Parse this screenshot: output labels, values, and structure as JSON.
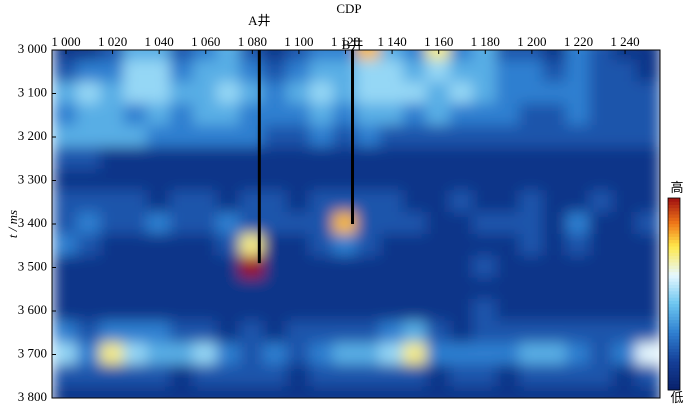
{
  "chart_data": {
    "type": "heatmap",
    "x_label": "CDP",
    "y_label": "t / ms",
    "xlim": [
      994,
      1255
    ],
    "ylim": [
      3000,
      3800
    ],
    "y_reversed": true,
    "xticks": [
      {
        "value": 1000,
        "label": "1 000"
      },
      {
        "value": 1020,
        "label": "1 020"
      },
      {
        "value": 1040,
        "label": "1 040"
      },
      {
        "value": 1060,
        "label": "1 060"
      },
      {
        "value": 1080,
        "label": "1 080"
      },
      {
        "value": 1100,
        "label": "1 100"
      },
      {
        "value": 1120,
        "label": "1 120"
      },
      {
        "value": 1140,
        "label": "1 140"
      },
      {
        "value": 1160,
        "label": "1 160"
      },
      {
        "value": 1180,
        "label": "1 180"
      },
      {
        "value": 1200,
        "label": "1 200"
      },
      {
        "value": 1220,
        "label": "1 220"
      },
      {
        "value": 1240,
        "label": "1 240"
      }
    ],
    "yticks": [
      {
        "value": 3000,
        "label": "3 000"
      },
      {
        "value": 3100,
        "label": "3 100"
      },
      {
        "value": 3200,
        "label": "3 200"
      },
      {
        "value": 3300,
        "label": "3 300"
      },
      {
        "value": 3400,
        "label": "3 400"
      },
      {
        "value": 3500,
        "label": "3 500"
      },
      {
        "value": 3600,
        "label": "3 600"
      },
      {
        "value": 3700,
        "label": "3 700"
      },
      {
        "value": 3800,
        "label": "3 800"
      }
    ],
    "x": [
      1000,
      1010,
      1020,
      1030,
      1040,
      1050,
      1060,
      1070,
      1080,
      1090,
      1100,
      1110,
      1120,
      1130,
      1140,
      1150,
      1160,
      1170,
      1180,
      1190,
      1200,
      1210,
      1220,
      1230,
      1240,
      1250
    ],
    "y": [
      3000,
      3050,
      3100,
      3150,
      3200,
      3250,
      3300,
      3350,
      3400,
      3450,
      3500,
      3550,
      3600,
      3650,
      3700,
      3750,
      3800
    ],
    "zlim": [
      0,
      10
    ],
    "z": [
      [
        1,
        1,
        2,
        4,
        4,
        2,
        3,
        4,
        2,
        1,
        2,
        3,
        3,
        8,
        4,
        3,
        7,
        3,
        4,
        2,
        2,
        1,
        3,
        2,
        1,
        1
      ],
      [
        2,
        3,
        3,
        5,
        5,
        3,
        4,
        4,
        3,
        2,
        3,
        4,
        4,
        5,
        5,
        4,
        5,
        4,
        4,
        3,
        3,
        2,
        3,
        2,
        2,
        1
      ],
      [
        4,
        5,
        4,
        5,
        5,
        4,
        4,
        5,
        4,
        3,
        4,
        5,
        4,
        5,
        5,
        5,
        4,
        5,
        4,
        3,
        3,
        3,
        3,
        2,
        2,
        2
      ],
      [
        3,
        4,
        4,
        3,
        4,
        3,
        4,
        4,
        3,
        3,
        3,
        4,
        3,
        4,
        4,
        3,
        4,
        3,
        3,
        3,
        2,
        2,
        3,
        2,
        2,
        2
      ],
      [
        4,
        4,
        4,
        4,
        3,
        3,
        3,
        3,
        3,
        2,
        2,
        3,
        2,
        3,
        2,
        2,
        2,
        2,
        2,
        2,
        2,
        2,
        2,
        2,
        2,
        2
      ],
      [
        2,
        2,
        1,
        1,
        1,
        1,
        1,
        1,
        1,
        1,
        1,
        1,
        1,
        1,
        1,
        1,
        1,
        1,
        1,
        1,
        1,
        1,
        1,
        1,
        1,
        1
      ],
      [
        1,
        1,
        1,
        1,
        1,
        1,
        1,
        1,
        1,
        1,
        1,
        1,
        1,
        1,
        1,
        1,
        1,
        1,
        1,
        1,
        1,
        1,
        1,
        1,
        1,
        1
      ],
      [
        2,
        2,
        2,
        2,
        1,
        2,
        2,
        1,
        2,
        2,
        1,
        2,
        2,
        2,
        2,
        1,
        1,
        2,
        1,
        1,
        2,
        1,
        1,
        2,
        1,
        1
      ],
      [
        2,
        3,
        2,
        2,
        3,
        2,
        2,
        3,
        2,
        2,
        2,
        2,
        8,
        2,
        2,
        2,
        1,
        1,
        2,
        2,
        2,
        1,
        3,
        1,
        1,
        2
      ],
      [
        3,
        2,
        1,
        1,
        1,
        1,
        1,
        2,
        7,
        1,
        1,
        2,
        3,
        2,
        1,
        1,
        1,
        1,
        1,
        1,
        2,
        1,
        2,
        1,
        1,
        1
      ],
      [
        1,
        1,
        1,
        1,
        1,
        1,
        1,
        1,
        10,
        1,
        1,
        1,
        1,
        1,
        1,
        1,
        1,
        1,
        2,
        1,
        1,
        1,
        1,
        1,
        1,
        1
      ],
      [
        1,
        1,
        1,
        1,
        1,
        1,
        1,
        1,
        1,
        1,
        1,
        1,
        1,
        1,
        1,
        1,
        1,
        1,
        1,
        1,
        1,
        1,
        1,
        1,
        1,
        1
      ],
      [
        1,
        1,
        1,
        1,
        1,
        1,
        1,
        1,
        1,
        1,
        1,
        1,
        1,
        1,
        1,
        1,
        1,
        1,
        2,
        1,
        1,
        1,
        1,
        1,
        1,
        1
      ],
      [
        3,
        2,
        3,
        3,
        3,
        2,
        2,
        1,
        2,
        1,
        2,
        2,
        2,
        2,
        3,
        4,
        2,
        1,
        2,
        2,
        2,
        2,
        2,
        2,
        2,
        2
      ],
      [
        5,
        3,
        7,
        5,
        4,
        4,
        5,
        3,
        2,
        3,
        2,
        3,
        4,
        4,
        5,
        7,
        3,
        3,
        3,
        3,
        4,
        4,
        3,
        2,
        3,
        6
      ],
      [
        2,
        2,
        2,
        2,
        2,
        1,
        2,
        2,
        2,
        2,
        1,
        2,
        2,
        2,
        2,
        2,
        1,
        2,
        2,
        1,
        2,
        2,
        2,
        2,
        1,
        2
      ],
      [
        1,
        1,
        1,
        1,
        1,
        1,
        1,
        1,
        1,
        1,
        1,
        1,
        1,
        1,
        1,
        1,
        1,
        1,
        1,
        1,
        1,
        1,
        1,
        1,
        1,
        1
      ]
    ],
    "colorscale": [
      {
        "value": 0,
        "color": "#08206a"
      },
      {
        "value": 1.5,
        "color": "#153f98"
      },
      {
        "value": 3,
        "color": "#2f7fd0"
      },
      {
        "value": 4.5,
        "color": "#6cc6f0"
      },
      {
        "value": 6,
        "color": "#e6f8ff"
      },
      {
        "value": 7.5,
        "color": "#ffe84a"
      },
      {
        "value": 8.7,
        "color": "#f07818"
      },
      {
        "value": 10,
        "color": "#a01010"
      }
    ],
    "colorbar_labels": [
      "高",
      "低"
    ],
    "wells": [
      {
        "name": "A井",
        "x": 1083,
        "t_end": 3490
      },
      {
        "name": "B井",
        "x": 1123,
        "t_end": 3400
      }
    ],
    "well_color": "#000000"
  }
}
